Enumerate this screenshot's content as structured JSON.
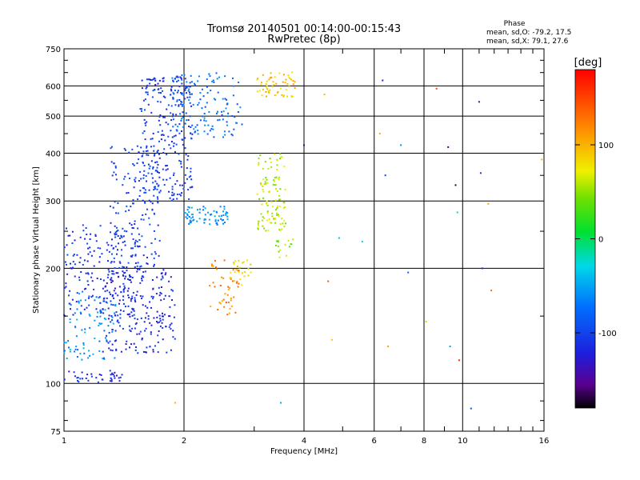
{
  "header": {
    "title_line1": "Tromsø 20140501 00:14:00-00:15:43",
    "title_line2": "RwPretec (8p)"
  },
  "phase_stats": {
    "heading": "Phase",
    "line_o": "mean, sd,O: -79.2, 17.5",
    "line_x": "mean, sd,X:  79.1, 27.6"
  },
  "colorbar": {
    "unit": "[deg]",
    "ticks": [
      "100",
      "0",
      "-100"
    ],
    "tick_values": [
      100,
      0,
      -100
    ],
    "range": [
      -180,
      180
    ]
  },
  "chart_data": {
    "type": "scatter",
    "title": "Tromsø 20140501 00:14:00-00:15:43",
    "subtitle": "RwPretec (8p)",
    "xlabel": "Frequency [MHz]",
    "ylabel": "Stationary phase Virtual Height [km]",
    "x_scale": "log",
    "y_scale": "log",
    "xlim": [
      1,
      16
    ],
    "ylim": [
      75,
      750
    ],
    "x_ticks": [
      1,
      2,
      4,
      6,
      8,
      10,
      16
    ],
    "x_tick_labels": [
      "1",
      "2",
      "4",
      "6",
      "8",
      "10",
      "16"
    ],
    "x_minor_ticks": [
      3,
      5,
      7,
      9,
      11,
      12,
      13,
      14,
      15
    ],
    "y_ticks": [
      75,
      100,
      200,
      300,
      400,
      500,
      600,
      750
    ],
    "y_tick_labels": [
      "75",
      "100",
      "200",
      "300",
      "400",
      "500",
      "600",
      "750"
    ],
    "grid": true,
    "color_variable": "phase [deg]",
    "clusters": [
      {
        "x_range": [
          1.0,
          1.4
        ],
        "y_range": [
          100,
          108
        ],
        "phase": -115,
        "n": 40
      },
      {
        "x_range": [
          1.0,
          1.35
        ],
        "y_range": [
          115,
          175
        ],
        "phase": -60,
        "n": 90
      },
      {
        "x_range": [
          1.0,
          1.55
        ],
        "y_range": [
          150,
          260
        ],
        "phase": -110,
        "n": 180
      },
      {
        "x_range": [
          1.25,
          1.9
        ],
        "y_range": [
          120,
          200
        ],
        "phase": -115,
        "n": 220
      },
      {
        "x_range": [
          1.3,
          1.75
        ],
        "y_range": [
          200,
          420
        ],
        "phase": -100,
        "n": 160
      },
      {
        "x_range": [
          1.55,
          2.1
        ],
        "y_range": [
          300,
          640
        ],
        "phase": -105,
        "n": 260
      },
      {
        "x_range": [
          1.85,
          2.8
        ],
        "y_range": [
          440,
          650
        ],
        "phase": -75,
        "n": 130
      },
      {
        "x_range": [
          2.0,
          2.6
        ],
        "y_range": [
          260,
          290
        ],
        "phase": -60,
        "n": 70
      },
      {
        "x_range": [
          2.3,
          2.75
        ],
        "y_range": [
          150,
          210
        ],
        "phase": 120,
        "n": 45
      },
      {
        "x_range": [
          2.6,
          2.95
        ],
        "y_range": [
          180,
          210
        ],
        "phase": 80,
        "n": 25
      },
      {
        "x_range": [
          3.05,
          3.6
        ],
        "y_range": [
          250,
          400
        ],
        "phase": 60,
        "n": 110
      },
      {
        "x_range": [
          3.05,
          3.8
        ],
        "y_range": [
          560,
          660
        ],
        "phase": 90,
        "n": 60
      },
      {
        "x_range": [
          3.4,
          3.75
        ],
        "y_range": [
          210,
          240
        ],
        "phase": 50,
        "n": 15
      }
    ],
    "scattered_points": [
      {
        "x": 4.0,
        "y": 420,
        "phase": -150
      },
      {
        "x": 4.5,
        "y": 570,
        "phase": 95
      },
      {
        "x": 4.6,
        "y": 185,
        "phase": 140
      },
      {
        "x": 4.7,
        "y": 130,
        "phase": 90
      },
      {
        "x": 4.9,
        "y": 240,
        "phase": -40
      },
      {
        "x": 5.6,
        "y": 235,
        "phase": -30
      },
      {
        "x": 6.2,
        "y": 450,
        "phase": 100
      },
      {
        "x": 6.4,
        "y": 350,
        "phase": -100
      },
      {
        "x": 6.5,
        "y": 125,
        "phase": 110
      },
      {
        "x": 7.0,
        "y": 420,
        "phase": -60
      },
      {
        "x": 7.3,
        "y": 195,
        "phase": -80
      },
      {
        "x": 8.1,
        "y": 145,
        "phase": 60
      },
      {
        "x": 9.2,
        "y": 415,
        "phase": -160
      },
      {
        "x": 9.3,
        "y": 125,
        "phase": -50
      },
      {
        "x": 9.6,
        "y": 330,
        "phase": -170
      },
      {
        "x": 9.7,
        "y": 280,
        "phase": -20
      },
      {
        "x": 9.8,
        "y": 115,
        "phase": 160
      },
      {
        "x": 11.0,
        "y": 545,
        "phase": -140
      },
      {
        "x": 11.1,
        "y": 355,
        "phase": -110
      },
      {
        "x": 11.2,
        "y": 200,
        "phase": -120
      },
      {
        "x": 11.6,
        "y": 295,
        "phase": 110
      },
      {
        "x": 11.8,
        "y": 175,
        "phase": 130
      },
      {
        "x": 10.5,
        "y": 86,
        "phase": -90
      },
      {
        "x": 15.8,
        "y": 385,
        "phase": 100
      },
      {
        "x": 6.3,
        "y": 620,
        "phase": -120
      },
      {
        "x": 8.6,
        "y": 590,
        "phase": 150
      },
      {
        "x": 1.9,
        "y": 89,
        "phase": 100
      },
      {
        "x": 3.5,
        "y": 89,
        "phase": -50
      }
    ]
  }
}
